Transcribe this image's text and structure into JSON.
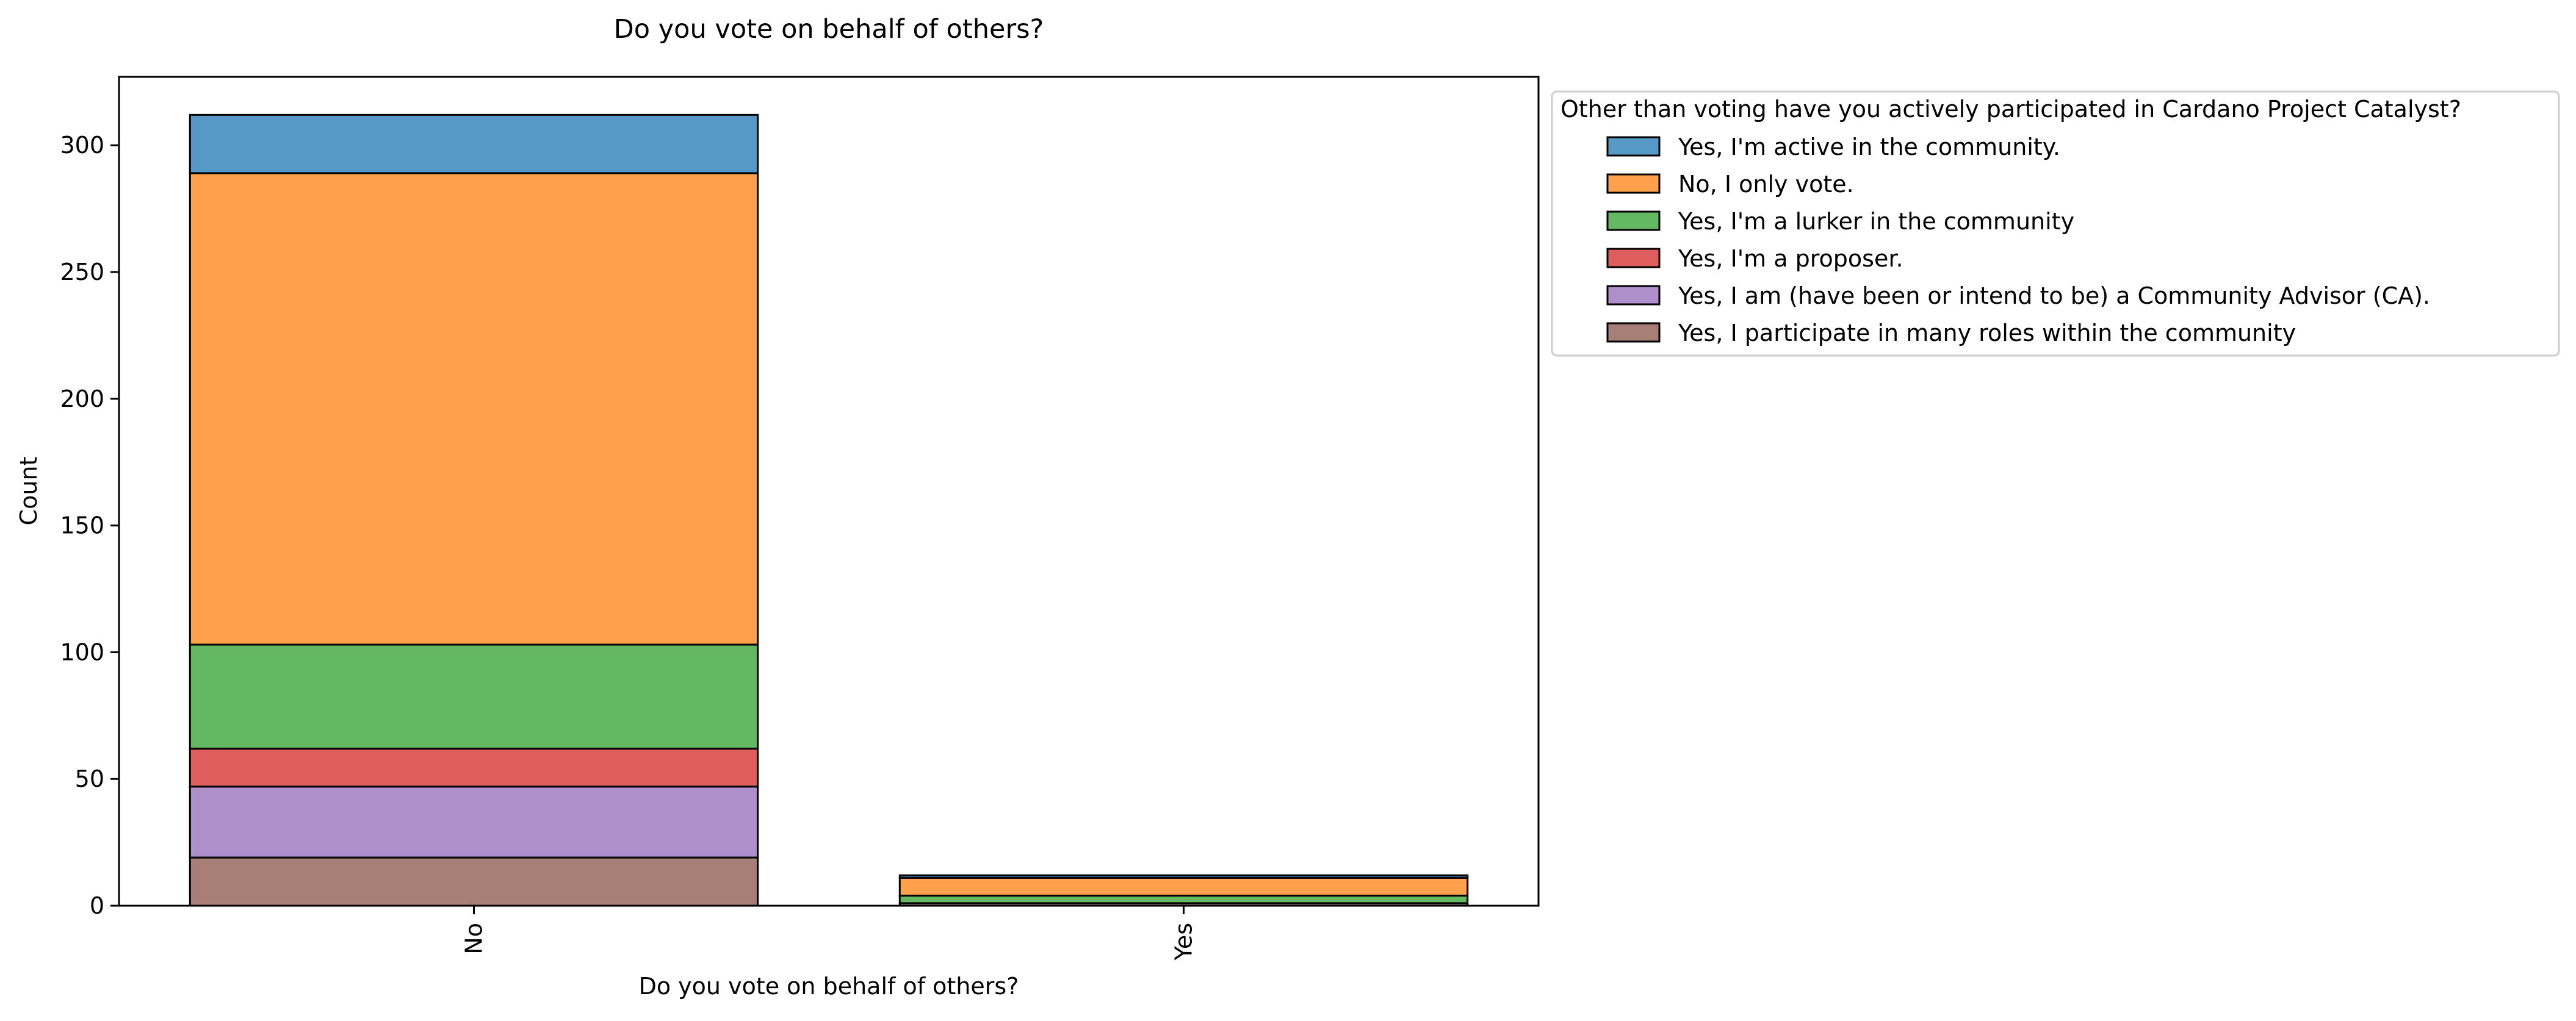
{
  "chart_data": {
    "type": "bar",
    "stacked": true,
    "title": "Do you vote on behalf of others?",
    "xlabel": "Do you vote on behalf of others?",
    "ylabel": "Count",
    "categories": [
      "No",
      "Yes"
    ],
    "ylim": [
      0,
      327
    ],
    "yticks": [
      0,
      50,
      100,
      150,
      200,
      250,
      300
    ],
    "grid": false,
    "legend": {
      "title": "Other than voting have you actively participated in Cardano Project Catalyst?",
      "placement": "outside-top-right"
    },
    "series": [
      {
        "name": "Yes, I participate in many roles within the community",
        "color": "#a77f76",
        "values": [
          19,
          1
        ]
      },
      {
        "name": "Yes, I am (have been or intend to be) a Community Advisor (CA).",
        "color": "#ae8ecb",
        "values": [
          28,
          0
        ]
      },
      {
        "name": "Yes, I'm a proposer.",
        "color": "#e05d5e",
        "values": [
          15,
          0
        ]
      },
      {
        "name": "Yes, I'm a lurker in the community",
        "color": "#64b862",
        "values": [
          41,
          3
        ]
      },
      {
        "name": "No, I only vote.",
        "color": "#ffa04c",
        "values": [
          186,
          7
        ]
      },
      {
        "name": "Yes, I'm active in the community.",
        "color": "#5799c6",
        "values": [
          23,
          1
        ]
      }
    ]
  }
}
